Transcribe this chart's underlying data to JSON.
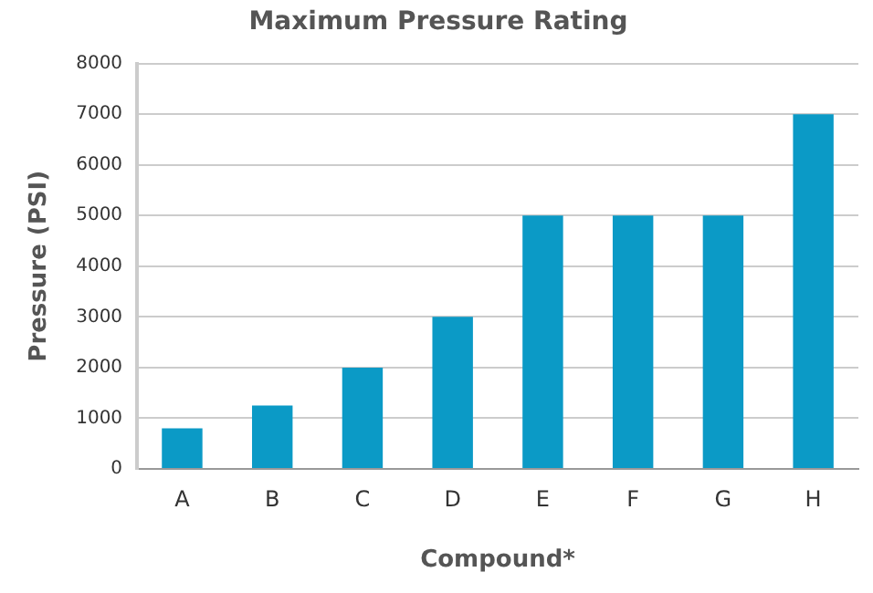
{
  "chart_data": {
    "type": "bar",
    "title": "Maximum Pressure Rating",
    "xlabel": "Compound*",
    "ylabel": "Pressure (PSI)",
    "categories": [
      "A",
      "B",
      "C",
      "D",
      "E",
      "F",
      "G",
      "H"
    ],
    "values": [
      800,
      1250,
      2000,
      3000,
      5000,
      5000,
      5000,
      7000
    ],
    "color": "#0b9ac6",
    "ylim": [
      0,
      8000
    ],
    "yticks": [
      0,
      1000,
      2000,
      3000,
      4000,
      5000,
      6000,
      7000,
      8000
    ],
    "grid": "y",
    "legend": false
  }
}
